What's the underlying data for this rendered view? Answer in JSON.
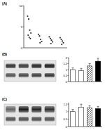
{
  "chart_data": [
    {
      "type": "scatter",
      "panel": "(A)",
      "x": [
        0.85,
        0.95,
        1.05,
        1.15,
        0.9,
        1.0,
        1.1,
        1.85,
        1.95,
        2.05,
        2.15,
        2.0,
        2.85,
        2.95,
        3.05,
        3.15,
        3.0,
        3.85,
        3.95,
        4.05,
        4.15,
        4.0
      ],
      "values": [
        7.5,
        6.8,
        4.2,
        3.5,
        3.0,
        2.5,
        2.2,
        3.2,
        2.8,
        2.0,
        1.5,
        1.2,
        2.6,
        2.2,
        1.8,
        1.4,
        1.0,
        2.4,
        2.0,
        1.6,
        1.2,
        0.8
      ],
      "color": "#333333",
      "marker": "circle",
      "xlim": [
        0.5,
        4.5
      ],
      "ylim": [
        0,
        10
      ],
      "yticks": [
        0,
        5,
        10
      ],
      "tick_labels": "y"
    },
    {
      "type": "bar",
      "panel": "(B)",
      "categories": [
        null,
        null,
        null,
        null
      ],
      "values": [
        1.0,
        0.9,
        1.3,
        1.7
      ],
      "errors": [
        0.15,
        0.2,
        0.2,
        0.25
      ],
      "colors": [
        "#ffffff",
        "#ffffff",
        "#aaaaaa",
        "#000000"
      ],
      "ylim": [
        0,
        2
      ],
      "yticks": [
        0,
        0.5,
        1,
        1.5,
        2
      ],
      "tick_labels": "y"
    },
    {
      "type": "bar",
      "panel": "(C)",
      "categories": [
        null,
        null,
        null,
        null
      ],
      "values": [
        1.0,
        1.3,
        1.25,
        1.2
      ],
      "errors": [
        0.15,
        0.2,
        0.15,
        0.15
      ],
      "colors": [
        "#ffffff",
        "#ffffff",
        "#aaaaaa",
        "#000000"
      ],
      "ylim": [
        0,
        1.6
      ],
      "yticks": [
        0,
        0.5,
        1,
        1.5
      ],
      "tick_labels": "y"
    }
  ]
}
